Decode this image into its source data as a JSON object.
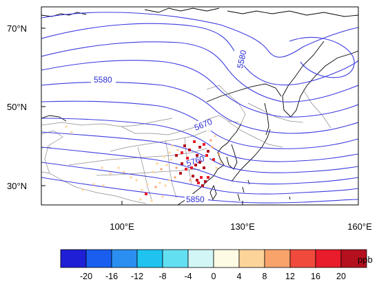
{
  "map": {
    "lat_labels": [
      "70°N",
      "50°N",
      "30°N"
    ],
    "lon_labels": [
      "100°E",
      "130°E",
      "160°E"
    ],
    "contour_labels": [
      "5580",
      "5580",
      "5670",
      "5760",
      "5850"
    ],
    "contour_color": "#3a3ae0",
    "coast_color": "#000000",
    "border_color": "#8a8a8a"
  },
  "colorbar": {
    "tick_labels": [
      "-20",
      "-16",
      "-12",
      "-8",
      "-4",
      "0",
      "4",
      "8",
      "12",
      "16",
      "20"
    ],
    "colors": [
      "#1f1fd6",
      "#1a5ef0",
      "#2a8ff0",
      "#1ec3f0",
      "#63dff2",
      "#d2f6f6",
      "#fdfbe3",
      "#fcd49a",
      "#f9a36a",
      "#f04a3c",
      "#e81c2a",
      "#b5101e"
    ],
    "units": "ppb"
  },
  "stations": {
    "description_colors": [
      "#b5101e",
      "#e81c2a",
      "#f9a36a",
      "#fcd49a"
    ]
  }
}
